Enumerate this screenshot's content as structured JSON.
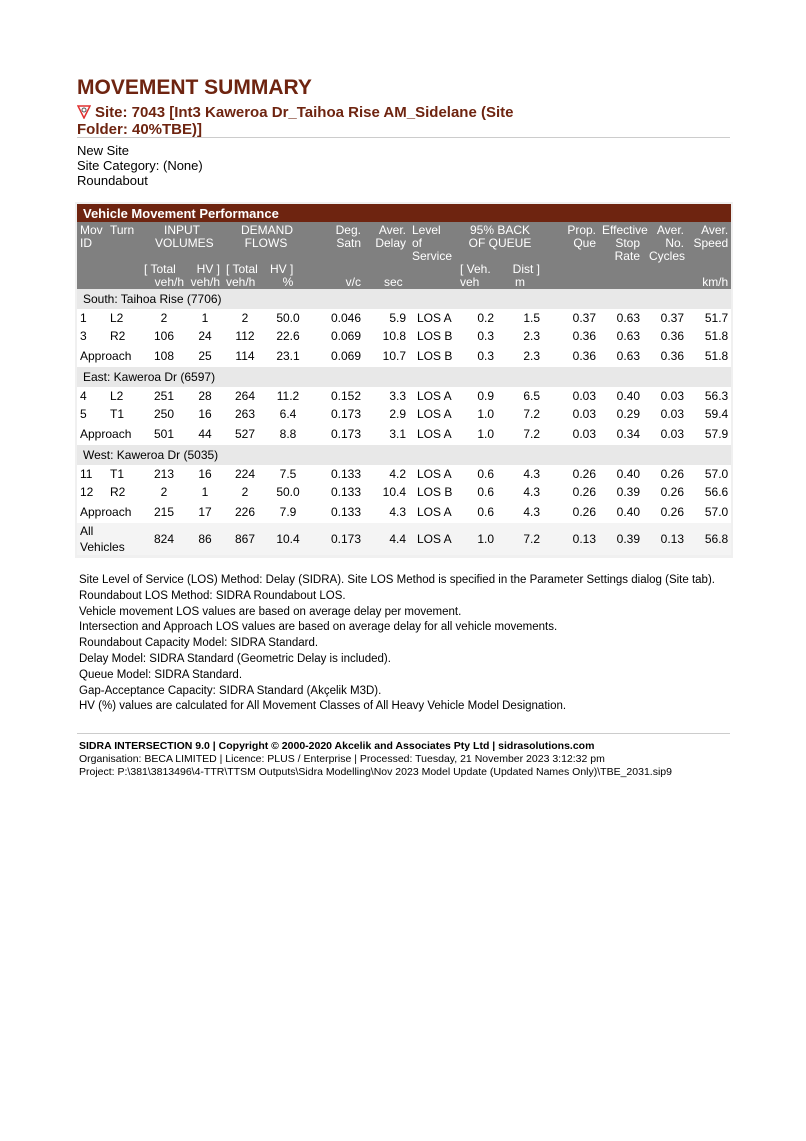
{
  "title": "MOVEMENT SUMMARY",
  "site": "Site: 7043 [Int3 Kaweroa Dr_Taihoa Rise AM_Sidelane (Site Folder: 40%TBE)]",
  "info": [
    "New Site",
    "Site Category: (None)",
    "Roundabout"
  ],
  "table": {
    "caption": "Vehicle Movement Performance",
    "headers": {
      "mov": "Mov ID",
      "turn": "Turn",
      "input": "INPUT VOLUMES",
      "demand": "DEMAND FLOWS",
      "deg": "Deg. Satn",
      "delay": "Aver. Delay",
      "los": "Level of Service",
      "queue": "95% BACK OF QUEUE",
      "prop": "Prop. Que",
      "stop": "Effective Stop Rate",
      "cycles": "Aver. No. Cycles",
      "speed": "Aver. Speed",
      "sub": {
        "in_total": "[ Total",
        "in_hv": "HV ]",
        "dem_total": "[ Total",
        "dem_hv": "HV ]",
        "q_veh": "[ Veh.",
        "q_dist": "Dist ]"
      },
      "units": {
        "in_total": "veh/h",
        "in_hv": "veh/h",
        "dem_total": "veh/h",
        "dem_hv": "%",
        "deg": "v/c",
        "delay": "sec",
        "q_veh": "veh",
        "q_dist": "m",
        "speed": "km/h"
      }
    },
    "sections": [
      {
        "name": "South: Taihoa Rise (7706)",
        "rows": [
          [
            "1",
            "L2",
            "2",
            "1",
            "2",
            "50.0",
            "0.046",
            "5.9",
            "LOS A",
            "0.2",
            "1.5",
            "0.37",
            "0.63",
            "0.37",
            "51.7"
          ],
          [
            "3",
            "R2",
            "106",
            "24",
            "112",
            "22.6",
            "0.069",
            "10.8",
            "LOS B",
            "0.3",
            "2.3",
            "0.36",
            "0.63",
            "0.36",
            "51.8"
          ]
        ],
        "approach": [
          "Approach",
          "108",
          "25",
          "114",
          "23.1",
          "0.069",
          "10.7",
          "LOS B",
          "0.3",
          "2.3",
          "0.36",
          "0.63",
          "0.36",
          "51.8"
        ]
      },
      {
        "name": "East: Kaweroa Dr (6597)",
        "rows": [
          [
            "4",
            "L2",
            "251",
            "28",
            "264",
            "11.2",
            "0.152",
            "3.3",
            "LOS A",
            "0.9",
            "6.5",
            "0.03",
            "0.40",
            "0.03",
            "56.3"
          ],
          [
            "5",
            "T1",
            "250",
            "16",
            "263",
            "6.4",
            "0.173",
            "2.9",
            "LOS A",
            "1.0",
            "7.2",
            "0.03",
            "0.29",
            "0.03",
            "59.4"
          ]
        ],
        "approach": [
          "Approach",
          "501",
          "44",
          "527",
          "8.8",
          "0.173",
          "3.1",
          "LOS A",
          "1.0",
          "7.2",
          "0.03",
          "0.34",
          "0.03",
          "57.9"
        ]
      },
      {
        "name": "West: Kaweroa Dr (5035)",
        "rows": [
          [
            "11",
            "T1",
            "213",
            "16",
            "224",
            "7.5",
            "0.133",
            "4.2",
            "LOS A",
            "0.6",
            "4.3",
            "0.26",
            "0.40",
            "0.26",
            "57.0"
          ],
          [
            "12",
            "R2",
            "2",
            "1",
            "2",
            "50.0",
            "0.133",
            "10.4",
            "LOS B",
            "0.6",
            "4.3",
            "0.26",
            "0.39",
            "0.26",
            "56.6"
          ]
        ],
        "approach": [
          "Approach",
          "215",
          "17",
          "226",
          "7.9",
          "0.133",
          "4.3",
          "LOS A",
          "0.6",
          "4.3",
          "0.26",
          "0.40",
          "0.26",
          "57.0"
        ]
      }
    ],
    "all": [
      "All Vehicles",
      "824",
      "86",
      "867",
      "10.4",
      "0.173",
      "4.4",
      "LOS A",
      "1.0",
      "7.2",
      "0.13",
      "0.39",
      "0.13",
      "56.8"
    ]
  },
  "notes": [
    "Site Level of Service (LOS) Method: Delay (SIDRA). Site LOS Method is specified in the Parameter Settings dialog (Site tab).",
    "Roundabout LOS Method: SIDRA Roundabout LOS.",
    "Vehicle movement LOS values are based on average delay per movement.",
    "Intersection and Approach LOS values are based on average delay for all vehicle movements.",
    "Roundabout Capacity Model: SIDRA Standard.",
    "Delay Model: SIDRA Standard (Geometric Delay is included).",
    "Queue Model: SIDRA Standard.",
    "Gap-Acceptance Capacity: SIDRA Standard (Akçelik M3D).",
    "HV (%) values are calculated for All Movement Classes of All Heavy Vehicle Model Designation."
  ],
  "footer": {
    "line1": "SIDRA INTERSECTION 9.0  |  Copyright © 2000-2020 Akcelik and Associates Pty Ltd  |  sidrasolutions.com",
    "line2": "Organisation: BECA LIMITED  |  Licence: PLUS / Enterprise  |  Processed: Tuesday, 21 November 2023 3:12:32 pm",
    "line3": "Project:  P:\\381\\3813496\\4-TTR\\TTSM Outputs\\Sidra Modelling\\Nov 2023 Model Update (Updated Names Only)\\TBE_2031.sip9"
  },
  "colors": {
    "brand": "#6e2410",
    "header_gray": "#808080",
    "section_gray": "#e8e8e8"
  }
}
